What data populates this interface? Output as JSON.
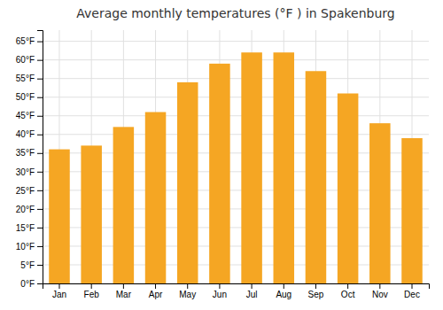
{
  "chart_data": {
    "type": "bar",
    "title": "Average monthly temperatures (°F ) in Spakenburg",
    "categories": [
      "Jan",
      "Feb",
      "Mar",
      "Apr",
      "May",
      "Jun",
      "Jul",
      "Aug",
      "Sep",
      "Oct",
      "Nov",
      "Dec"
    ],
    "values": [
      36,
      37,
      42,
      46,
      54,
      59,
      62,
      62,
      57,
      51,
      43,
      39
    ],
    "color": "#F5A623",
    "ylim": [
      0,
      68
    ],
    "yticks": [
      {
        "value": 0,
        "label": "0°F"
      },
      {
        "value": 5,
        "label": "5°F"
      },
      {
        "value": 10,
        "label": "10°F"
      },
      {
        "value": 15,
        "label": "15°F"
      },
      {
        "value": 20,
        "label": "20°F"
      },
      {
        "value": 25,
        "label": "25°F"
      },
      {
        "value": 30,
        "label": "30°F"
      },
      {
        "value": 35,
        "label": "35°F"
      },
      {
        "value": 40,
        "label": "40°F"
      },
      {
        "value": 45,
        "label": "45°F"
      },
      {
        "value": 50,
        "label": "50°F"
      },
      {
        "value": 55,
        "label": "55°F"
      },
      {
        "value": 60,
        "label": "60°F"
      },
      {
        "value": 65,
        "label": "65°F"
      }
    ],
    "grid": true
  }
}
